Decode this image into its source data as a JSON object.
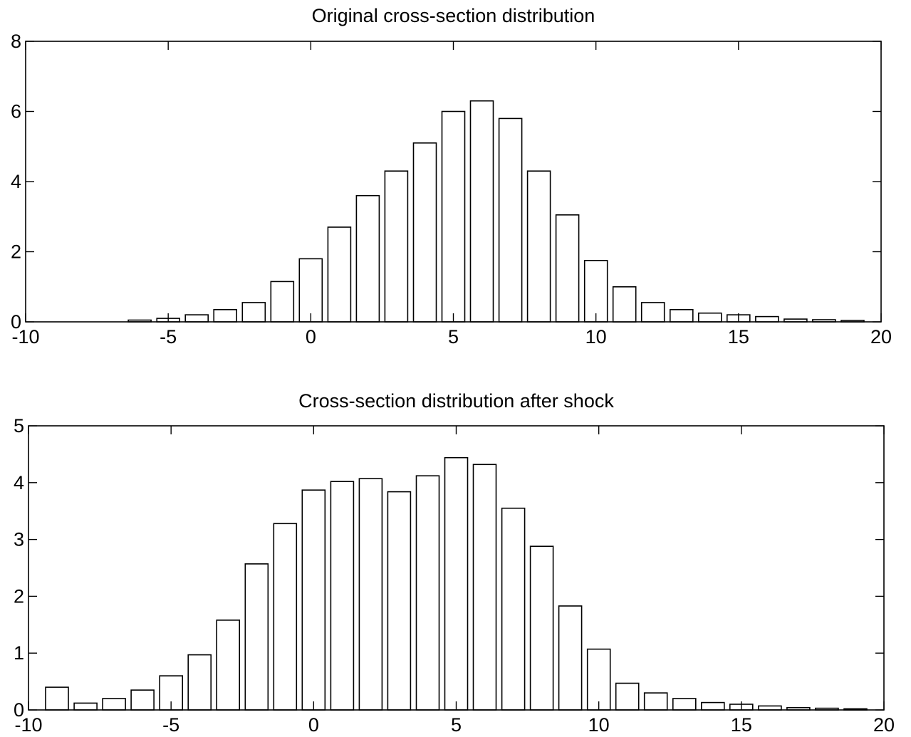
{
  "chart_data": [
    {
      "type": "bar",
      "title": "Original cross-section distribution",
      "xlim": [
        -10,
        20
      ],
      "ylim": [
        0,
        8
      ],
      "xticks": [
        -10,
        -5,
        0,
        5,
        10,
        15,
        20
      ],
      "yticks": [
        0,
        2,
        4,
        6,
        8
      ],
      "xtick_labels": [
        "-10",
        "-5",
        "0",
        "5",
        "10",
        "15",
        "20"
      ],
      "ytick_labels": [
        "0",
        "2",
        "4",
        "6",
        "8"
      ],
      "x": [
        -6,
        -5,
        -4,
        -3,
        -2,
        -1,
        0,
        1,
        2,
        3,
        4,
        5,
        6,
        7,
        8,
        9,
        10,
        11,
        12,
        13,
        14,
        15,
        16,
        17,
        18,
        19
      ],
      "values": [
        0.05,
        0.1,
        0.2,
        0.35,
        0.55,
        1.15,
        1.8,
        2.7,
        3.6,
        4.3,
        5.1,
        6.0,
        6.3,
        5.8,
        4.3,
        3.05,
        1.75,
        1.0,
        0.55,
        0.35,
        0.25,
        0.2,
        0.15,
        0.08,
        0.06,
        0.04
      ]
    },
    {
      "type": "bar",
      "title": "Cross-section distribution after shock",
      "xlim": [
        -10,
        20
      ],
      "ylim": [
        0,
        5
      ],
      "xticks": [
        -10,
        -5,
        0,
        5,
        10,
        15,
        20
      ],
      "yticks": [
        0,
        1,
        2,
        3,
        4,
        5
      ],
      "xtick_labels": [
        "-10",
        "-5",
        "0",
        "5",
        "10",
        "15",
        "20"
      ],
      "ytick_labels": [
        "0",
        "1",
        "2",
        "3",
        "4",
        "5"
      ],
      "x": [
        -9,
        -8,
        -7,
        -6,
        -5,
        -4,
        -3,
        -2,
        -1,
        0,
        1,
        2,
        3,
        4,
        5,
        6,
        7,
        8,
        9,
        10,
        11,
        12,
        13,
        14,
        15,
        16,
        17,
        18,
        19
      ],
      "values": [
        0.4,
        0.12,
        0.2,
        0.35,
        0.6,
        0.97,
        1.58,
        2.57,
        3.28,
        3.87,
        4.02,
        4.07,
        3.84,
        4.12,
        4.44,
        4.32,
        3.55,
        2.88,
        1.83,
        1.07,
        0.47,
        0.3,
        0.2,
        0.13,
        0.1,
        0.07,
        0.04,
        0.03,
        0.02
      ]
    }
  ]
}
